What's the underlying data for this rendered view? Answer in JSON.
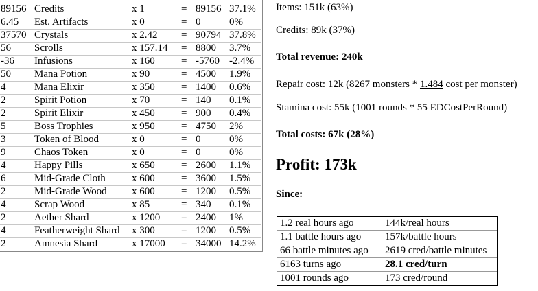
{
  "items_table": {
    "rows": [
      [
        "89156",
        "Credits",
        "x 1",
        "=",
        "89156",
        "37.1%"
      ],
      [
        "6.45",
        "Est. Artifacts",
        "x 0",
        "=",
        "0",
        "0%"
      ],
      [
        "37570",
        "Crystals",
        "x 2.42",
        "=",
        "90794",
        "37.8%"
      ],
      [
        "56",
        "Scrolls",
        "x 157.14",
        "=",
        "8800",
        "3.7%"
      ],
      [
        "-36",
        "Infusions",
        "x 160",
        "=",
        "-5760",
        "-2.4%"
      ],
      [
        "50",
        "Mana Potion",
        "x 90",
        "=",
        "4500",
        "1.9%"
      ],
      [
        "4",
        "Mana Elixir",
        "x 350",
        "=",
        "1400",
        "0.6%"
      ],
      [
        "2",
        "Spirit Potion",
        "x 70",
        "=",
        "140",
        "0.1%"
      ],
      [
        "2",
        "Spirit Elixir",
        "x 450",
        "=",
        "900",
        "0.4%"
      ],
      [
        "5",
        "Boss Trophies",
        "x 950",
        "=",
        "4750",
        "2%"
      ],
      [
        "3",
        "Token of Blood",
        "x 0",
        "=",
        "0",
        "0%"
      ],
      [
        "9",
        "Chaos Token",
        "x 0",
        "=",
        "0",
        "0%"
      ],
      [
        "4",
        "Happy Pills",
        "x 650",
        "=",
        "2600",
        "1.1%"
      ],
      [
        "6",
        "Mid-Grade Cloth",
        "x 600",
        "=",
        "3600",
        "1.5%"
      ],
      [
        "2",
        "Mid-Grade Wood",
        "x 600",
        "=",
        "1200",
        "0.5%"
      ],
      [
        "4",
        "Scrap Wood",
        "x 85",
        "=",
        "340",
        "0.1%"
      ],
      [
        "2",
        "Aether Shard",
        "x 1200",
        "=",
        "2400",
        "1%"
      ],
      [
        "4",
        "Featherweight Shard",
        "x 300",
        "=",
        "1200",
        "0.5%"
      ],
      [
        "2",
        "Amnesia Shard",
        "x 17000",
        "=",
        "34000",
        "14.2%"
      ]
    ]
  },
  "summary": {
    "items": "Items: 151k (63%)",
    "credits": "Credits: 89k (37%)",
    "total_revenue": "Total revenue: 240k",
    "repair": {
      "prefix": "Repair cost: 12k (8267 monsters * ",
      "link": "1.484",
      "suffix": " cost per monster)"
    },
    "stamina": "Stamina cost: 55k (1001 rounds * 55 EDCostPerRound)",
    "total_costs": "Total costs: 67k (28%)",
    "profit": "Profit: 173k",
    "since": "Since:"
  },
  "since_table": {
    "rows": [
      [
        "1.2 real hours ago",
        "144k/real hours"
      ],
      [
        "1.1 battle hours ago",
        "157k/battle hours"
      ],
      [
        "66 battle minutes ago",
        "2619 cred/battle minutes"
      ],
      [
        "6163 turns ago",
        "28.1 cred/turn"
      ],
      [
        "1001 rounds ago",
        "173 cred/round"
      ]
    ]
  }
}
